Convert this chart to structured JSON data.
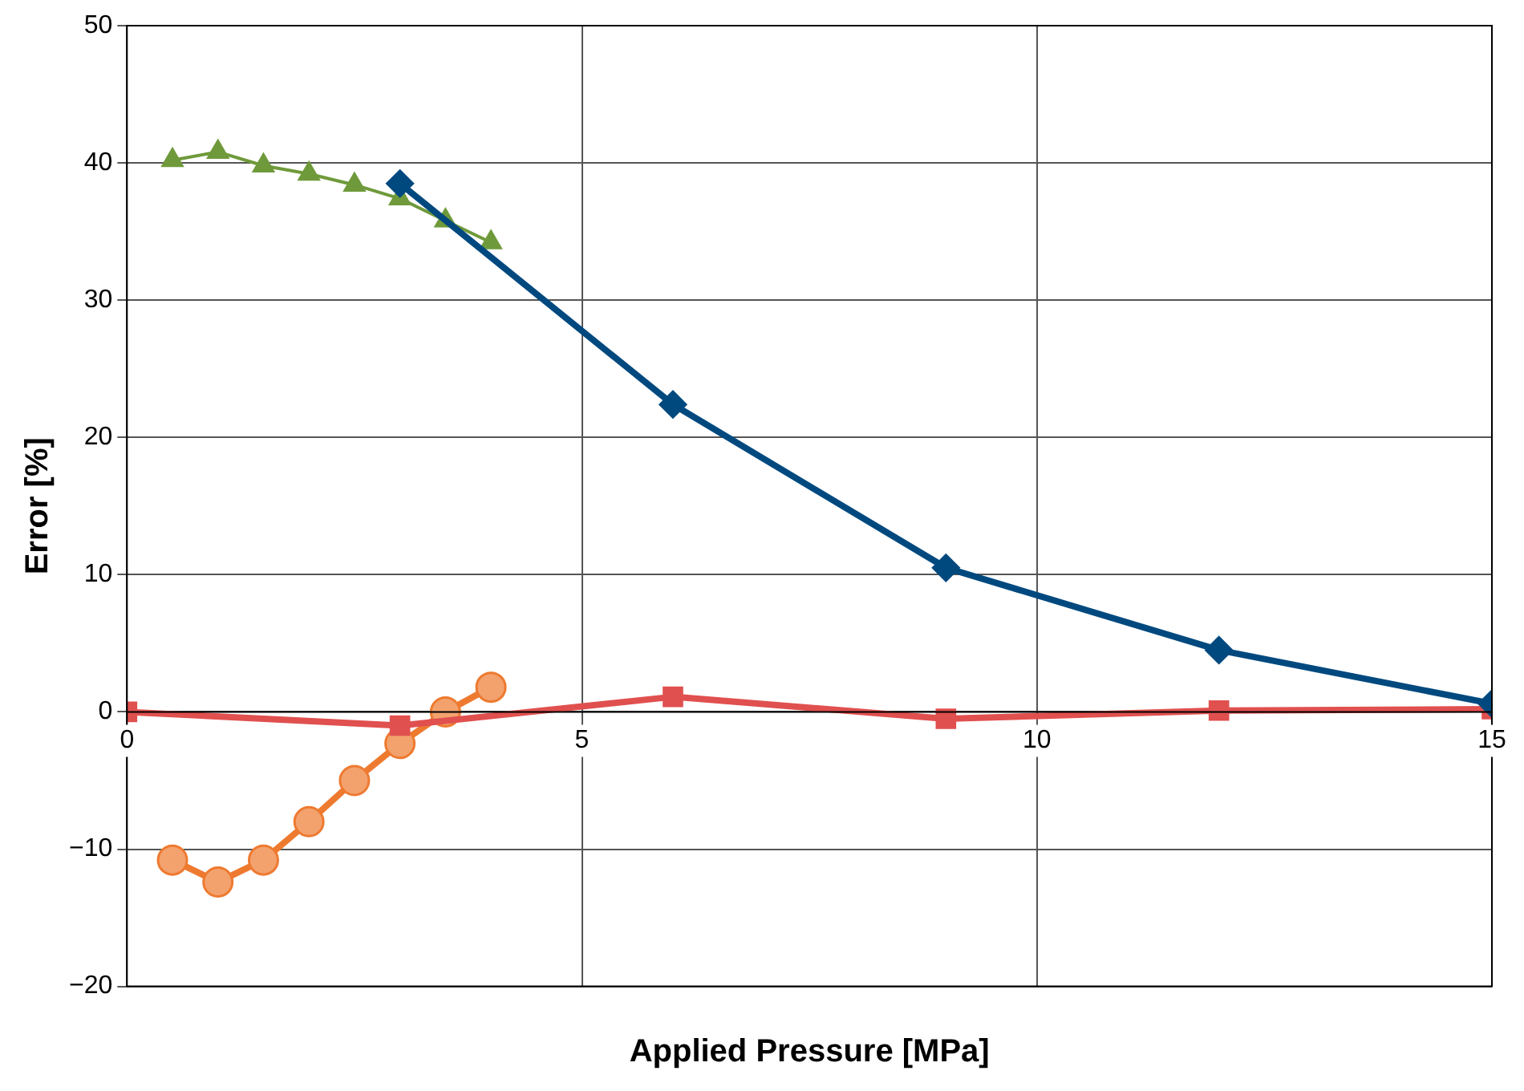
{
  "chart_data": {
    "type": "line",
    "xlabel": "Applied Pressure [MPa]",
    "ylabel": "Error [%]",
    "xlim": [
      0,
      15
    ],
    "xticks": [
      0,
      5,
      10,
      15
    ],
    "ylim": [
      -20,
      50
    ],
    "yticks": [
      {
        "value": -20,
        "label": "−20"
      },
      {
        "value": -10,
        "label": "−10"
      },
      0,
      10,
      20,
      30,
      40,
      50
    ],
    "grid": true,
    "legend": false,
    "series": [
      {
        "color": "#00497f",
        "marker": "diamond",
        "x": [
          3,
          6,
          9,
          12,
          15
        ],
        "values": [
          38.5,
          22.4,
          10.5,
          4.5,
          0.6
        ]
      },
      {
        "color": "#e0504f",
        "marker": "square",
        "x": [
          0,
          3,
          6,
          9,
          12,
          15
        ],
        "values": [
          0,
          -1.0,
          1.1,
          -0.5,
          0.1,
          0.2
        ]
      },
      {
        "color": "#6f9a3b",
        "marker": "triangle",
        "x": [
          0.5,
          1,
          1.5,
          2,
          2.5,
          3,
          3.5,
          4
        ],
        "values": [
          40.2,
          40.8,
          39.8,
          39.2,
          38.4,
          37.4,
          35.8,
          34.2
        ]
      },
      {
        "color": "#ee7a30",
        "marker": "circle",
        "x": [
          0.5,
          1,
          1.5,
          2,
          2.5,
          3,
          3.5,
          4
        ],
        "values": [
          -10.8,
          -12.4,
          -10.8,
          -8.0,
          -5.0,
          -2.3,
          0.0,
          1.8
        ]
      }
    ]
  }
}
